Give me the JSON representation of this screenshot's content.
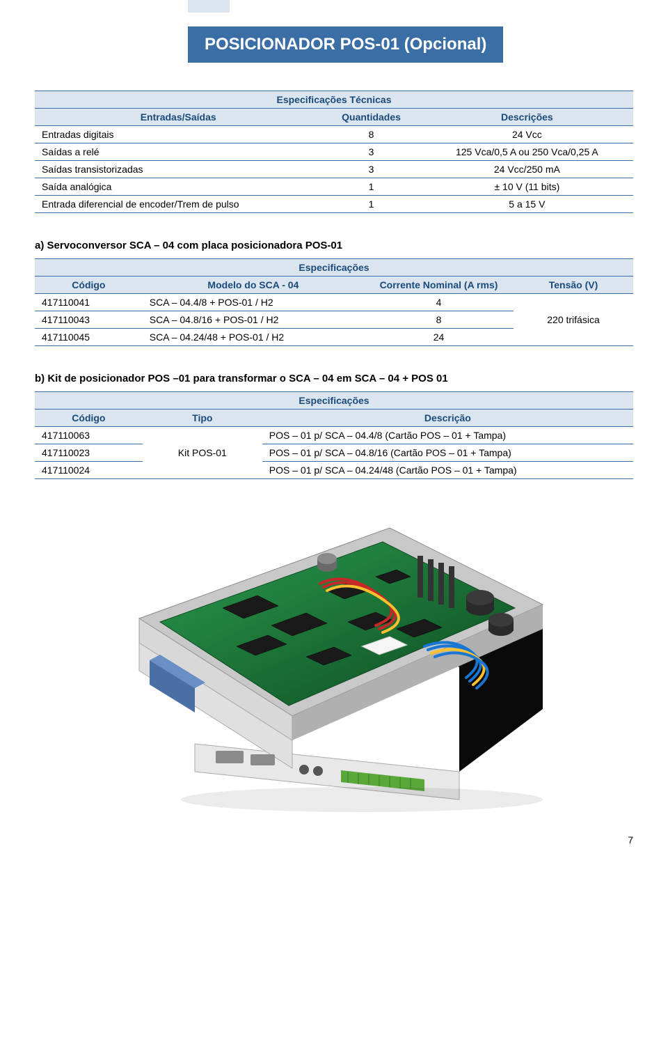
{
  "title": "POSICIONADOR POS-01 (Opcional)",
  "table1": {
    "spanHeader": "Especificações Técnicas",
    "columns": [
      "Entradas/Saídas",
      "Quantidades",
      "Descrições"
    ],
    "rows": [
      [
        "Entradas digitais",
        "8",
        "24 Vcc"
      ],
      [
        "Saídas a relé",
        "3",
        "125 Vca/0,5 A ou 250 Vca/0,25 A"
      ],
      [
        "Saídas transistorizadas",
        "3",
        "24 Vcc/250 mA"
      ],
      [
        "Saída analógica",
        "1",
        "± 10 V (11 bits)"
      ],
      [
        "Entrada diferencial de encoder/Trem de pulso",
        "1",
        "5 a 15 V"
      ]
    ]
  },
  "sectionA": "a) Servoconversor SCA – 04 com placa posicionadora POS-01",
  "table2": {
    "spanHeader": "Especificações",
    "columns": [
      "Código",
      "Modelo do SCA - 04",
      "Corrente Nominal (A rms)",
      "Tensão (V)"
    ],
    "rows": [
      [
        "417110041",
        "SCA – 04.4/8 + POS-01 / H2",
        "4"
      ],
      [
        "417110043",
        "SCA – 04.8/16 + POS-01 / H2",
        "8"
      ],
      [
        "417110045",
        "SCA – 04.24/48 + POS-01 / H2",
        "24"
      ]
    ],
    "tensao": "220 trifásica"
  },
  "sectionB": "b) Kit de posicionador POS –01  para transformar o SCA – 04 em SCA – 04 + POS 01",
  "table3": {
    "spanHeader": "Especificações",
    "columns": [
      "Código",
      "Tipo",
      "Descrição"
    ],
    "rows": [
      [
        "417110063",
        "POS – 01 p/ SCA – 04.4/8 (Cartão POS – 01 + Tampa)"
      ],
      [
        "417110023",
        "POS – 01 p/ SCA – 04.8/16 (Cartão POS – 01 + Tampa)"
      ],
      [
        "417110024",
        "POS – 01 p/ SCA – 04.24/48 (Cartão POS – 01 + Tampa)"
      ]
    ],
    "tipo": "Kit POS-01"
  },
  "pageNumber": "7",
  "colors": {
    "brand": "#3a6ea5",
    "headerBg": "#dbe5f0",
    "headerText": "#1a4a7a",
    "pcb": "#1f7a3e",
    "pcbDark": "#0d4a20",
    "chassis": "#1a1a1a",
    "frontPanel": "#e8e8e8",
    "connectorBlue": "#4a6fa5",
    "connectorGreen": "#5aa83a",
    "wireRed": "#c62828",
    "wireBlue": "#1976d2",
    "wireYellow": "#fbc02d",
    "capacitor": "#2a2a2a"
  }
}
